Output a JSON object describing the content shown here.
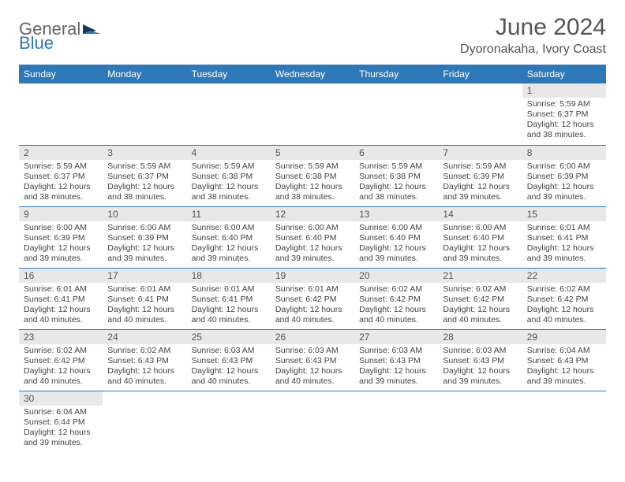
{
  "brand": {
    "part1": "General",
    "part2": "Blue"
  },
  "title": "June 2024",
  "subtitle": "Dyoronakaha, Ivory Coast",
  "colors": {
    "header_bg": "#2f78b7",
    "header_fg": "#ffffff",
    "daynum_bg": "#e8e8e8",
    "rule": "#2f78b7",
    "text": "#444444"
  },
  "weekdays": [
    "Sunday",
    "Monday",
    "Tuesday",
    "Wednesday",
    "Thursday",
    "Friday",
    "Saturday"
  ],
  "weeks": [
    [
      null,
      null,
      null,
      null,
      null,
      null,
      {
        "n": "1",
        "sr": "Sunrise: 5:59 AM",
        "ss": "Sunset: 6:37 PM",
        "dl1": "Daylight: 12 hours",
        "dl2": "and 38 minutes."
      }
    ],
    [
      {
        "n": "2",
        "sr": "Sunrise: 5:59 AM",
        "ss": "Sunset: 6:37 PM",
        "dl1": "Daylight: 12 hours",
        "dl2": "and 38 minutes."
      },
      {
        "n": "3",
        "sr": "Sunrise: 5:59 AM",
        "ss": "Sunset: 6:37 PM",
        "dl1": "Daylight: 12 hours",
        "dl2": "and 38 minutes."
      },
      {
        "n": "4",
        "sr": "Sunrise: 5:59 AM",
        "ss": "Sunset: 6:38 PM",
        "dl1": "Daylight: 12 hours",
        "dl2": "and 38 minutes."
      },
      {
        "n": "5",
        "sr": "Sunrise: 5:59 AM",
        "ss": "Sunset: 6:38 PM",
        "dl1": "Daylight: 12 hours",
        "dl2": "and 38 minutes."
      },
      {
        "n": "6",
        "sr": "Sunrise: 5:59 AM",
        "ss": "Sunset: 6:38 PM",
        "dl1": "Daylight: 12 hours",
        "dl2": "and 38 minutes."
      },
      {
        "n": "7",
        "sr": "Sunrise: 5:59 AM",
        "ss": "Sunset: 6:39 PM",
        "dl1": "Daylight: 12 hours",
        "dl2": "and 39 minutes."
      },
      {
        "n": "8",
        "sr": "Sunrise: 6:00 AM",
        "ss": "Sunset: 6:39 PM",
        "dl1": "Daylight: 12 hours",
        "dl2": "and 39 minutes."
      }
    ],
    [
      {
        "n": "9",
        "sr": "Sunrise: 6:00 AM",
        "ss": "Sunset: 6:39 PM",
        "dl1": "Daylight: 12 hours",
        "dl2": "and 39 minutes."
      },
      {
        "n": "10",
        "sr": "Sunrise: 6:00 AM",
        "ss": "Sunset: 6:39 PM",
        "dl1": "Daylight: 12 hours",
        "dl2": "and 39 minutes."
      },
      {
        "n": "11",
        "sr": "Sunrise: 6:00 AM",
        "ss": "Sunset: 6:40 PM",
        "dl1": "Daylight: 12 hours",
        "dl2": "and 39 minutes."
      },
      {
        "n": "12",
        "sr": "Sunrise: 6:00 AM",
        "ss": "Sunset: 6:40 PM",
        "dl1": "Daylight: 12 hours",
        "dl2": "and 39 minutes."
      },
      {
        "n": "13",
        "sr": "Sunrise: 6:00 AM",
        "ss": "Sunset: 6:40 PM",
        "dl1": "Daylight: 12 hours",
        "dl2": "and 39 minutes."
      },
      {
        "n": "14",
        "sr": "Sunrise: 6:00 AM",
        "ss": "Sunset: 6:40 PM",
        "dl1": "Daylight: 12 hours",
        "dl2": "and 39 minutes."
      },
      {
        "n": "15",
        "sr": "Sunrise: 6:01 AM",
        "ss": "Sunset: 6:41 PM",
        "dl1": "Daylight: 12 hours",
        "dl2": "and 39 minutes."
      }
    ],
    [
      {
        "n": "16",
        "sr": "Sunrise: 6:01 AM",
        "ss": "Sunset: 6:41 PM",
        "dl1": "Daylight: 12 hours",
        "dl2": "and 40 minutes."
      },
      {
        "n": "17",
        "sr": "Sunrise: 6:01 AM",
        "ss": "Sunset: 6:41 PM",
        "dl1": "Daylight: 12 hours",
        "dl2": "and 40 minutes."
      },
      {
        "n": "18",
        "sr": "Sunrise: 6:01 AM",
        "ss": "Sunset: 6:41 PM",
        "dl1": "Daylight: 12 hours",
        "dl2": "and 40 minutes."
      },
      {
        "n": "19",
        "sr": "Sunrise: 6:01 AM",
        "ss": "Sunset: 6:42 PM",
        "dl1": "Daylight: 12 hours",
        "dl2": "and 40 minutes."
      },
      {
        "n": "20",
        "sr": "Sunrise: 6:02 AM",
        "ss": "Sunset: 6:42 PM",
        "dl1": "Daylight: 12 hours",
        "dl2": "and 40 minutes."
      },
      {
        "n": "21",
        "sr": "Sunrise: 6:02 AM",
        "ss": "Sunset: 6:42 PM",
        "dl1": "Daylight: 12 hours",
        "dl2": "and 40 minutes."
      },
      {
        "n": "22",
        "sr": "Sunrise: 6:02 AM",
        "ss": "Sunset: 6:42 PM",
        "dl1": "Daylight: 12 hours",
        "dl2": "and 40 minutes."
      }
    ],
    [
      {
        "n": "23",
        "sr": "Sunrise: 6:02 AM",
        "ss": "Sunset: 6:42 PM",
        "dl1": "Daylight: 12 hours",
        "dl2": "and 40 minutes."
      },
      {
        "n": "24",
        "sr": "Sunrise: 6:02 AM",
        "ss": "Sunset: 6:43 PM",
        "dl1": "Daylight: 12 hours",
        "dl2": "and 40 minutes."
      },
      {
        "n": "25",
        "sr": "Sunrise: 6:03 AM",
        "ss": "Sunset: 6:43 PM",
        "dl1": "Daylight: 12 hours",
        "dl2": "and 40 minutes."
      },
      {
        "n": "26",
        "sr": "Sunrise: 6:03 AM",
        "ss": "Sunset: 6:43 PM",
        "dl1": "Daylight: 12 hours",
        "dl2": "and 40 minutes."
      },
      {
        "n": "27",
        "sr": "Sunrise: 6:03 AM",
        "ss": "Sunset: 6:43 PM",
        "dl1": "Daylight: 12 hours",
        "dl2": "and 39 minutes."
      },
      {
        "n": "28",
        "sr": "Sunrise: 6:03 AM",
        "ss": "Sunset: 6:43 PM",
        "dl1": "Daylight: 12 hours",
        "dl2": "and 39 minutes."
      },
      {
        "n": "29",
        "sr": "Sunrise: 6:04 AM",
        "ss": "Sunset: 6:43 PM",
        "dl1": "Daylight: 12 hours",
        "dl2": "and 39 minutes."
      }
    ],
    [
      {
        "n": "30",
        "sr": "Sunrise: 6:04 AM",
        "ss": "Sunset: 6:44 PM",
        "dl1": "Daylight: 12 hours",
        "dl2": "and 39 minutes."
      },
      null,
      null,
      null,
      null,
      null,
      null
    ]
  ]
}
